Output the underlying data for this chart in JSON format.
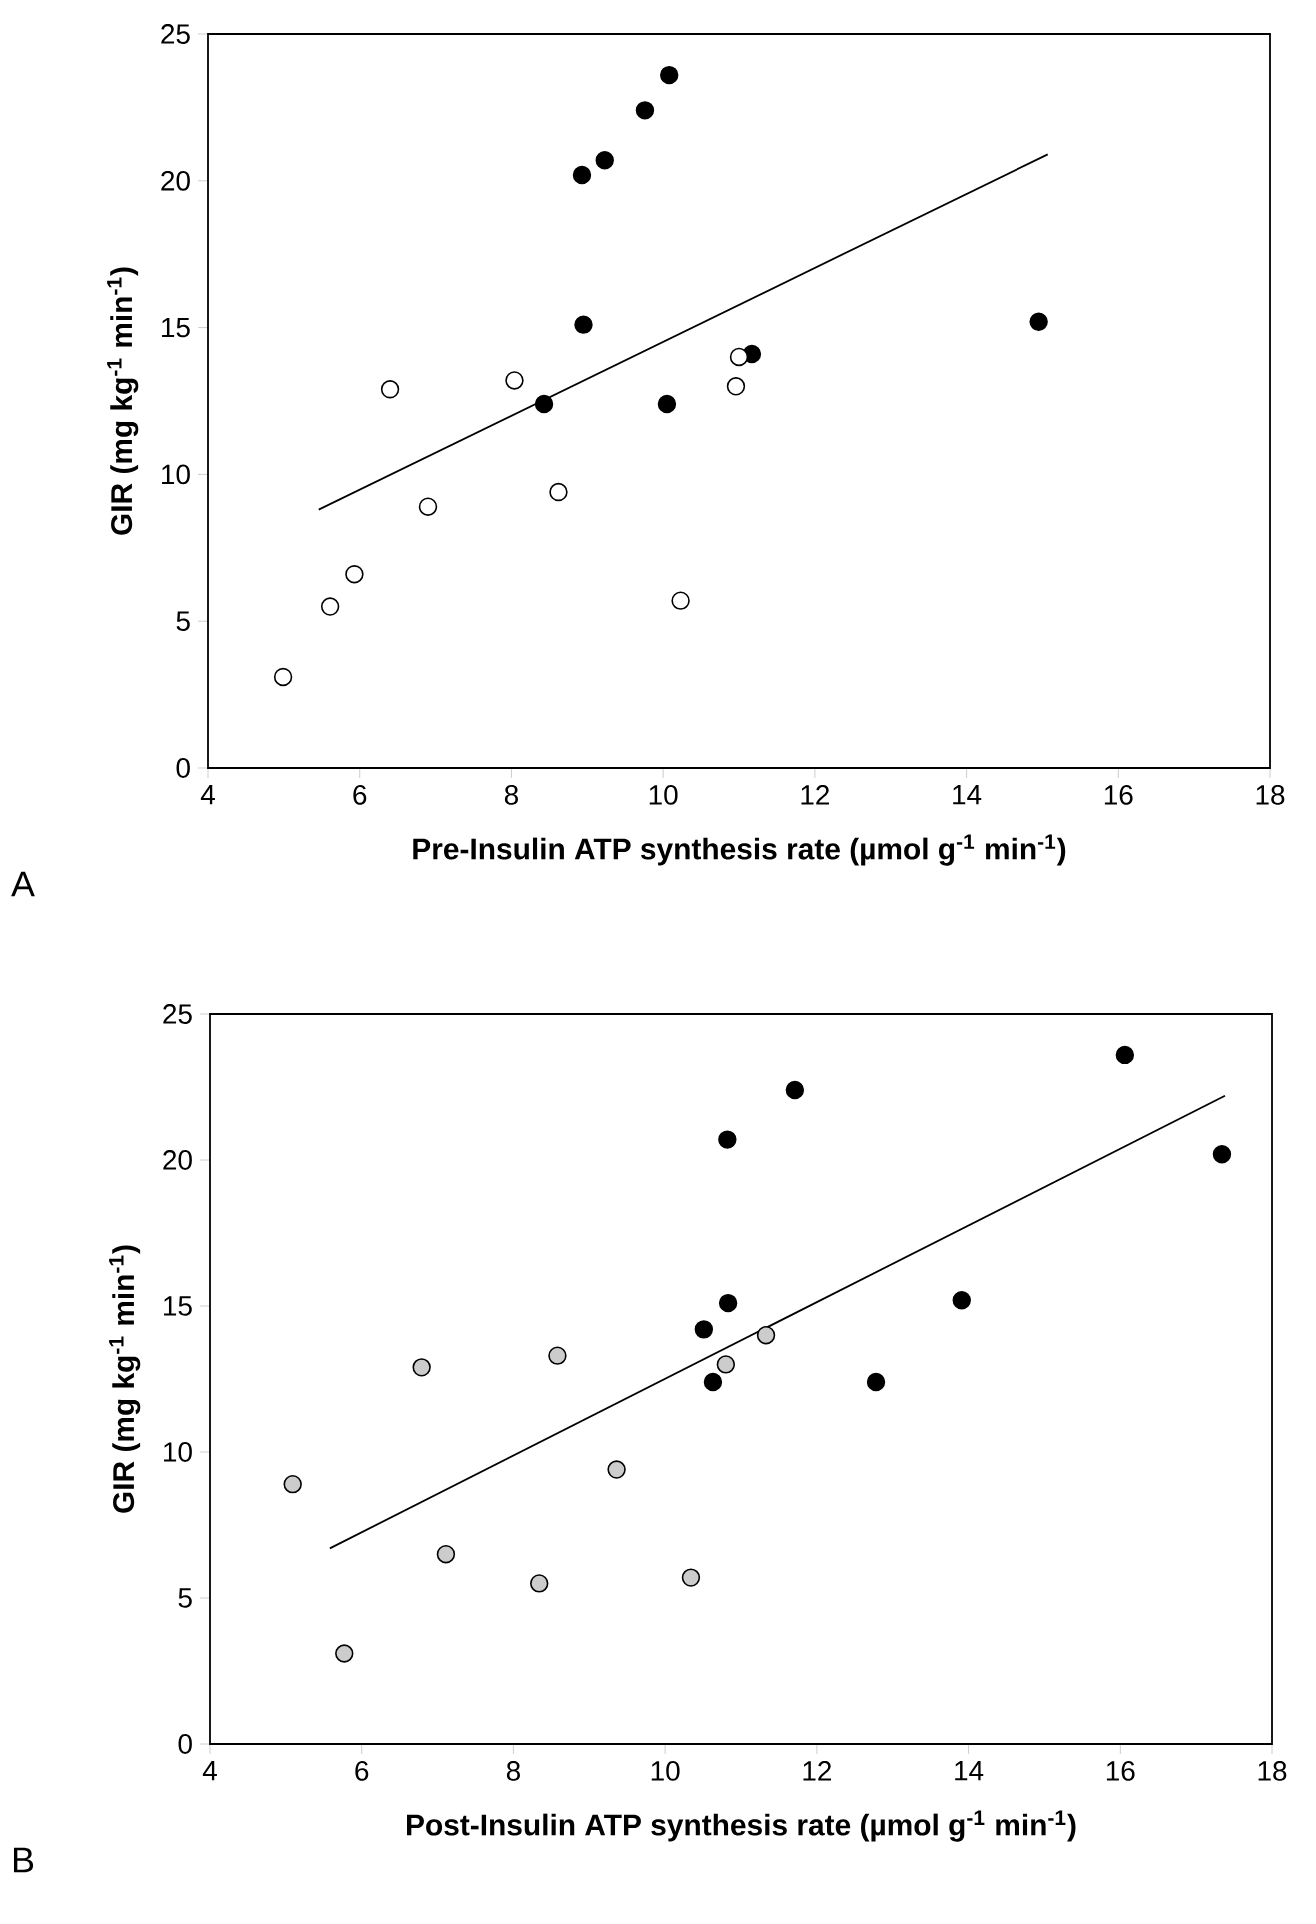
{
  "chart_data": [
    {
      "type": "scatter",
      "xlabel": "Pre-Insulin ATP synthesis rate (µmol g$^{-1}$ min$^{-1}$)",
      "ylabel": "GIR (mg kg$^{-1}$ min$^{-1}$)",
      "annotations": [
        "A"
      ],
      "xlim": [
        4,
        18
      ],
      "ylim": [
        0,
        25
      ],
      "xticks": [
        4,
        6,
        8,
        10,
        12,
        14,
        16,
        18
      ],
      "yticks": [
        0,
        5,
        10,
        15,
        20,
        25
      ],
      "series": [
        {
          "marker": "circle",
          "color": "#000000",
          "x": [
            8.93,
            9.23,
            9.76,
            10.08,
            8.95,
            8.43,
            10.05,
            11.17,
            14.95
          ],
          "values": [
            20.2,
            20.7,
            22.4,
            23.6,
            15.1,
            12.4,
            12.4,
            14.1,
            15.2
          ]
        },
        {
          "marker": "circle",
          "color": "#ffffff",
          "x": [
            4.99,
            5.61,
            5.93,
            6.4,
            6.9,
            8.04,
            8.62,
            10.23,
            10.96,
            11.0
          ],
          "values": [
            3.1,
            5.5,
            6.6,
            12.9,
            8.9,
            13.2,
            9.4,
            5.7,
            13.0,
            14.0
          ]
        },
        {
          "type": "line",
          "marker": "none",
          "color": "#000000",
          "x": [
            5.46,
            15.07
          ],
          "values": [
            8.8,
            20.9
          ]
        }
      ]
    },
    {
      "type": "scatter",
      "xlabel": "Post-Insulin ATP synthesis rate (µmol g$^{-1}$ min$^{-1}$)",
      "ylabel": "GIR (mg kg$^{-1}$ min$^{-1}$)",
      "annotations": [
        "B"
      ],
      "xlim": [
        4,
        18
      ],
      "ylim": [
        0,
        25
      ],
      "xticks": [
        4,
        6,
        8,
        10,
        12,
        14,
        16,
        18
      ],
      "yticks": [
        0,
        5,
        10,
        15,
        20,
        25
      ],
      "series": [
        {
          "marker": "circle",
          "color": "#000000",
          "x": [
            16.06,
            11.71,
            10.82,
            17.34,
            10.83,
            10.51,
            10.63,
            12.78,
            13.91
          ],
          "values": [
            23.6,
            22.4,
            20.7,
            20.2,
            15.1,
            14.2,
            12.4,
            12.4,
            15.2
          ]
        },
        {
          "marker": "circle",
          "color": "#cccccc",
          "x": [
            5.09,
            5.77,
            6.79,
            7.11,
            8.34,
            8.58,
            9.36,
            10.34,
            10.8,
            11.33
          ],
          "values": [
            8.9,
            3.1,
            12.9,
            6.5,
            5.5,
            13.3,
            9.4,
            5.7,
            13.0,
            14.0
          ]
        },
        {
          "type": "line",
          "marker": "none",
          "color": "#000000",
          "x": [
            5.58,
            17.38
          ],
          "values": [
            6.7,
            22.2
          ]
        }
      ]
    }
  ]
}
